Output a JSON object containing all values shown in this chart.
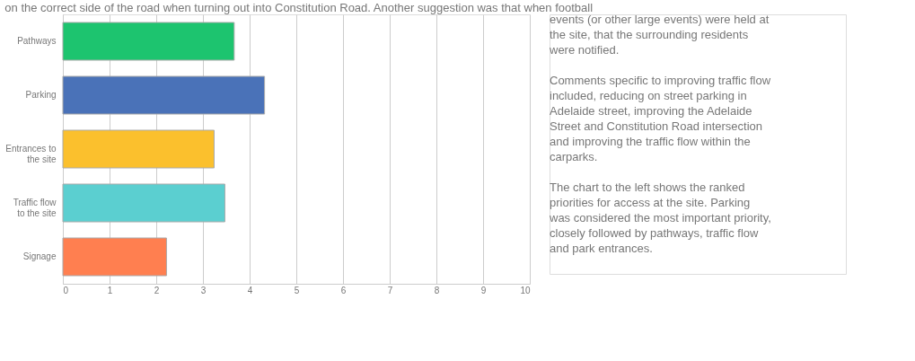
{
  "chart_data": {
    "type": "bar",
    "orientation": "horizontal",
    "categories": [
      "Pathways",
      "Parking",
      "Entrances to the site",
      "Traffic flow to the site",
      "Signage"
    ],
    "values": [
      3.67,
      4.32,
      3.24,
      3.47,
      2.22
    ],
    "colors": [
      "#1dc46f",
      "#4a72b8",
      "#fbc02d",
      "#5bcfd0",
      "#ff7f50"
    ],
    "xlim": [
      0,
      10
    ],
    "xticks": [
      0,
      1,
      2,
      3,
      4,
      5,
      6,
      7,
      8,
      9,
      10
    ],
    "grid": "x",
    "annotations": [
      "on the correct side of the road when turning out into Constitution Road. Another suggestion was that when football",
      "events (or other large events) were held at the site, that the surrounding residents were notified.",
      "Comments specific to improving traffic flow included, reducing on street parking in Adelaide street, improving the Adelaide Street and Constitution Road intersection and improving the traffic flow within the carparks.",
      "The chart to the left shows the ranked priorities for access at the site. Parking was considered the most important priority, closely followed by pathways, traffic flow and park entrances."
    ]
  }
}
